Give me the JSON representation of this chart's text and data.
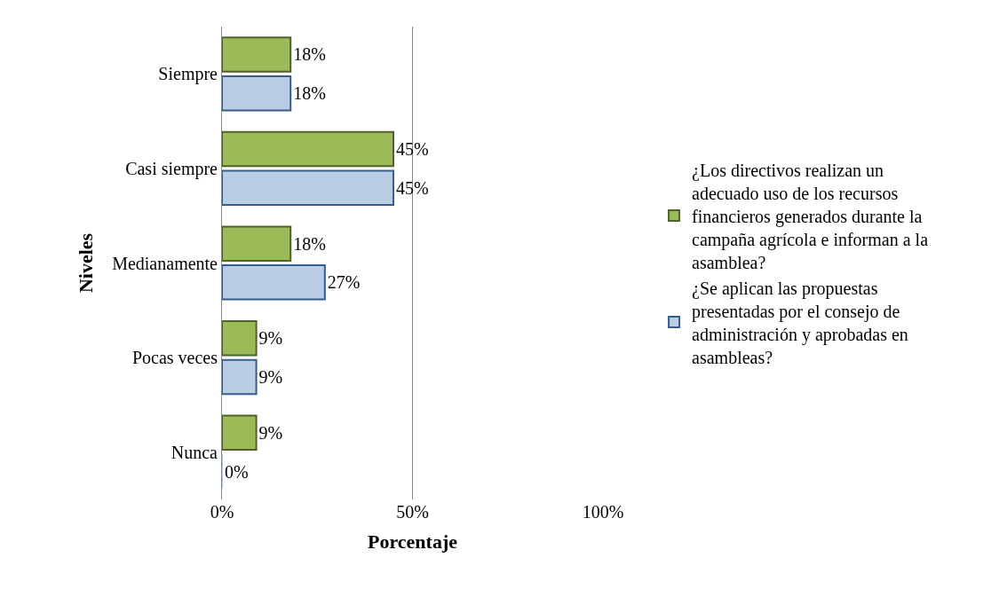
{
  "chart_data": {
    "type": "bar",
    "orientation": "horizontal",
    "xlabel": "Porcentaje",
    "ylabel": "Niveles",
    "categories": [
      "Siempre",
      "Casi siempre",
      "Medianamente",
      "Pocas veces",
      "Nunca"
    ],
    "series": [
      {
        "name": "¿Los directivos realizan un adecuado uso de los recursos financieros generados durante la campaña agrícola e informan a la asamblea?",
        "color": "#9bbb59",
        "values": [
          18,
          45,
          18,
          9,
          9
        ],
        "value_labels": [
          "18%",
          "45%",
          "18%",
          "9%",
          "9%"
        ]
      },
      {
        "name": "¿Se aplican las propuestas presentadas por el consejo de administración y aprobadas en asambleas?",
        "color": "#b9cde5",
        "values": [
          18,
          45,
          27,
          9,
          0
        ],
        "value_labels": [
          "18%",
          "45%",
          "27%",
          "9%",
          "0%"
        ]
      }
    ],
    "xlim": [
      0,
      100
    ],
    "xticks": [
      {
        "value": 0,
        "label": "0%"
      },
      {
        "value": 50,
        "label": "50%"
      },
      {
        "value": 100,
        "label": "100%"
      }
    ],
    "grid": "x",
    "legend": "right"
  }
}
